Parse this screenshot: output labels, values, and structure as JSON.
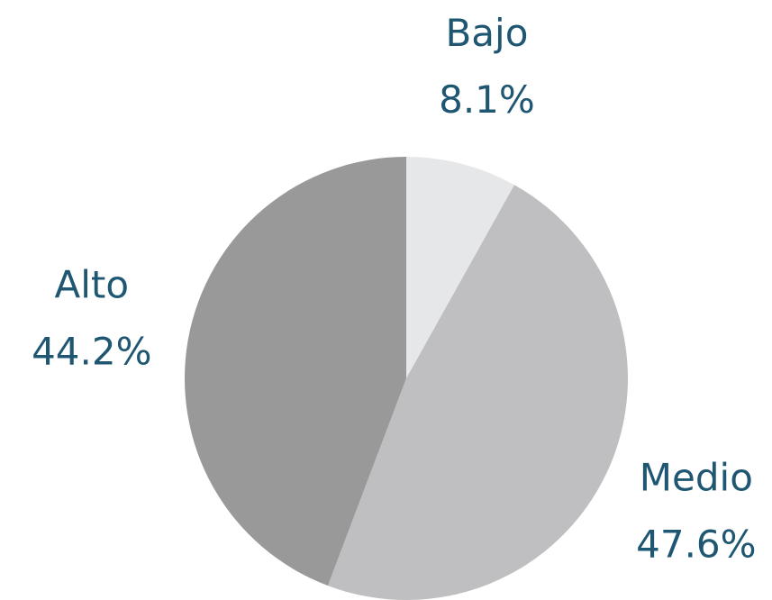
{
  "chart_data": {
    "type": "pie",
    "categories": [
      "Bajo",
      "Medio",
      "Alto"
    ],
    "values": [
      8.1,
      47.6,
      44.2
    ],
    "value_labels": [
      "8.1%",
      "47.6%",
      "44.2%"
    ],
    "colors": [
      "#e6e7e9",
      "#bfbfc1",
      "#999999"
    ]
  }
}
